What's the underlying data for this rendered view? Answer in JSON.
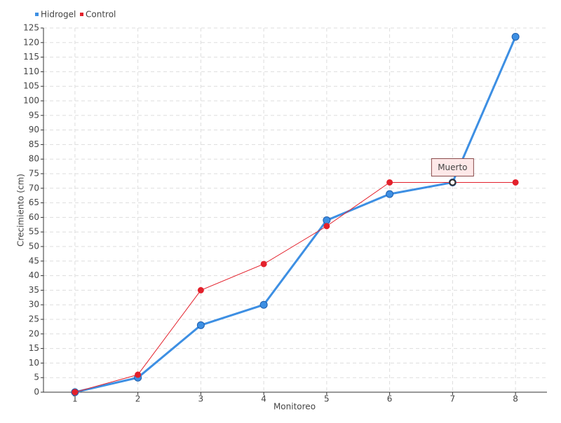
{
  "chart_data": {
    "type": "line",
    "x_label": "Monitoreo",
    "y_label": "Crecimiento (cm)",
    "x": [
      1,
      2,
      3,
      4,
      5,
      6,
      7,
      8
    ],
    "xlim": [
      0.5,
      8.5
    ],
    "xticks": [
      1,
      2,
      3,
      4,
      5,
      6,
      7,
      8
    ],
    "ylim": [
      0,
      125
    ],
    "yticks": [
      0,
      5,
      10,
      15,
      20,
      25,
      30,
      35,
      40,
      45,
      50,
      55,
      60,
      65,
      70,
      75,
      80,
      85,
      90,
      95,
      100,
      105,
      110,
      115,
      120,
      125
    ],
    "grid": true,
    "legend": "top-left",
    "series": [
      {
        "name": "Hidrogel",
        "color": "#3d8fe3",
        "values": [
          0,
          5,
          23,
          30,
          59,
          68,
          72,
          122
        ]
      },
      {
        "name": "Control",
        "color": "#e3202b",
        "values": [
          0,
          6,
          35,
          44,
          57,
          72,
          72,
          72
        ]
      }
    ],
    "annotations": [
      {
        "text": "Muerto",
        "x": 7,
        "y": 72
      }
    ]
  }
}
